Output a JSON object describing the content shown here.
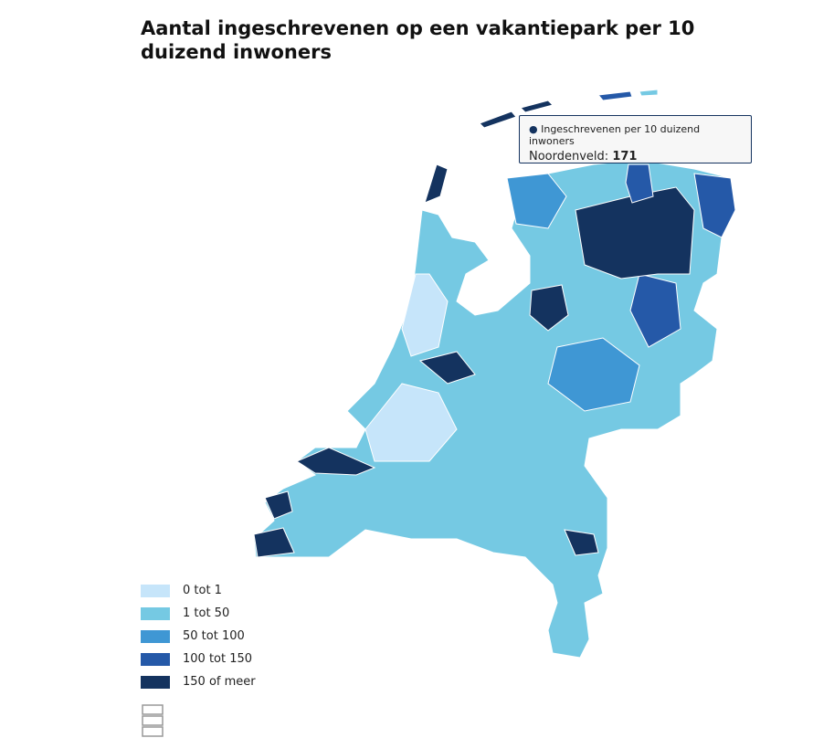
{
  "title": "Aantal ingeschrevenen op een vakantiepark per 10 duizend inwoners",
  "legend": [
    {
      "label": "0 tot 1",
      "color": "#c6e5fa"
    },
    {
      "label": "1 tot 50",
      "color": "#75c9e3"
    },
    {
      "label": "50 tot 100",
      "color": "#3f97d4"
    },
    {
      "label": "100 tot 150",
      "color": "#2559a8"
    },
    {
      "label": "150 of meer",
      "color": "#14335f"
    }
  ],
  "tooltip": {
    "series": "Ingeschrevenen per 10 duizend inwoners",
    "name": "Noordenveld:",
    "value": 171
  }
}
